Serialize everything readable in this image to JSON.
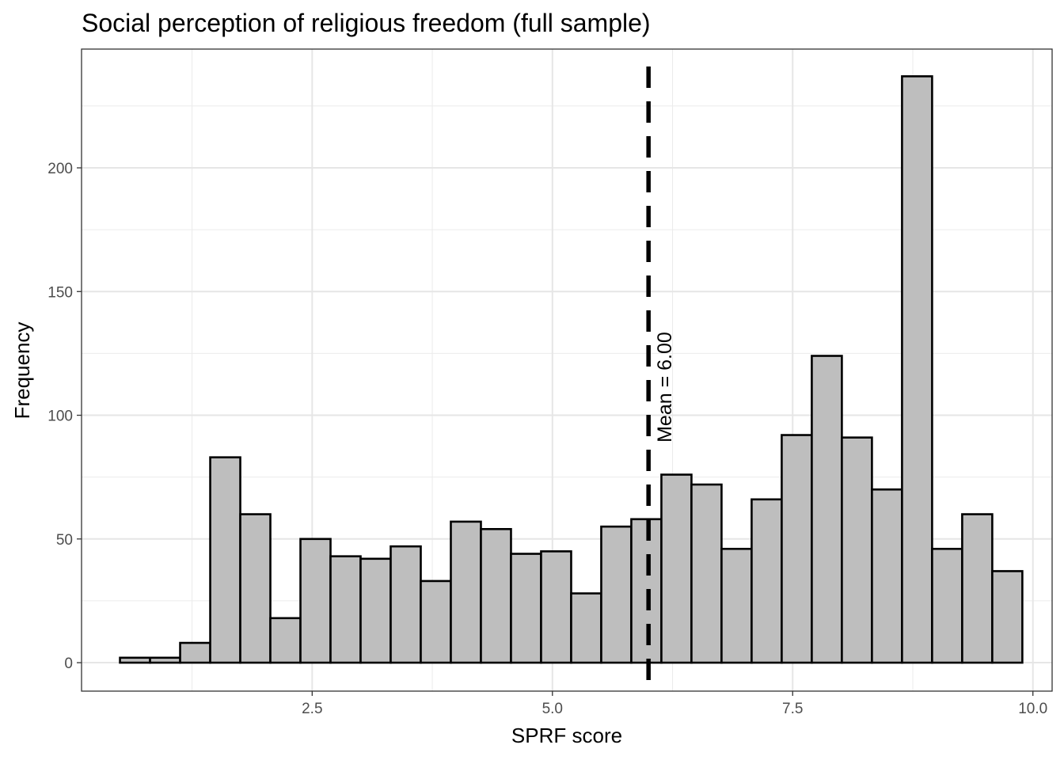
{
  "chart_data": {
    "type": "bar",
    "title": "Social perception of religious freedom (full sample)",
    "xlabel": "SPRF score",
    "ylabel": "Frequency",
    "xlim": [
      0.1,
      10.2
    ],
    "ylim": [
      -11.5,
      248
    ],
    "x_ticks": [
      {
        "value": 2.5,
        "label": "2.5"
      },
      {
        "value": 5.0,
        "label": "5.0"
      },
      {
        "value": 7.5,
        "label": "7.5"
      },
      {
        "value": 10.0,
        "label": "10.0"
      }
    ],
    "y_ticks": [
      {
        "value": 0,
        "label": "0"
      },
      {
        "value": 50,
        "label": "50"
      },
      {
        "value": 100,
        "label": "100"
      },
      {
        "value": 150,
        "label": "150"
      },
      {
        "value": 200,
        "label": "200"
      }
    ],
    "bin_start": 0.5,
    "bin_width": 0.313,
    "counts": [
      2,
      2,
      8,
      83,
      60,
      18,
      50,
      43,
      42,
      47,
      33,
      57,
      54,
      44,
      45,
      28,
      55,
      58,
      76,
      72,
      46,
      66,
      92,
      124,
      91,
      70,
      237,
      46,
      60,
      37
    ],
    "bar_fill": "#bebebe",
    "bar_stroke": "#000000",
    "mean": 6.0,
    "mean_label": "Mean = 6.00",
    "grid": true,
    "theme": "bw"
  }
}
